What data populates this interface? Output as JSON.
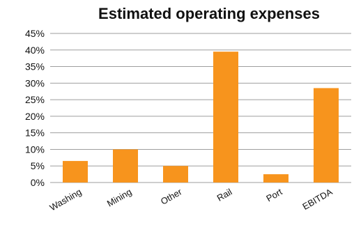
{
  "chart_data": {
    "type": "bar",
    "title": "Estimated operating expenses",
    "xlabel": "",
    "ylabel": "",
    "categories": [
      "Washing",
      "Mining",
      "Other",
      "Rail",
      "Port",
      "EBITDA"
    ],
    "values": [
      6.5,
      10,
      5,
      39.5,
      2.5,
      28.5
    ],
    "value_unit": "%",
    "ylim": [
      0,
      45
    ],
    "y_ticks": [
      "0%",
      "5%",
      "10%",
      "15%",
      "20%",
      "25%",
      "30%",
      "35%",
      "40%",
      "45%"
    ],
    "grid": true,
    "legend": "none",
    "colors": {
      "bar": "#F7941D",
      "grid": "#9E9E9E",
      "axis": "#9E9E9E",
      "text": "#111111"
    }
  }
}
